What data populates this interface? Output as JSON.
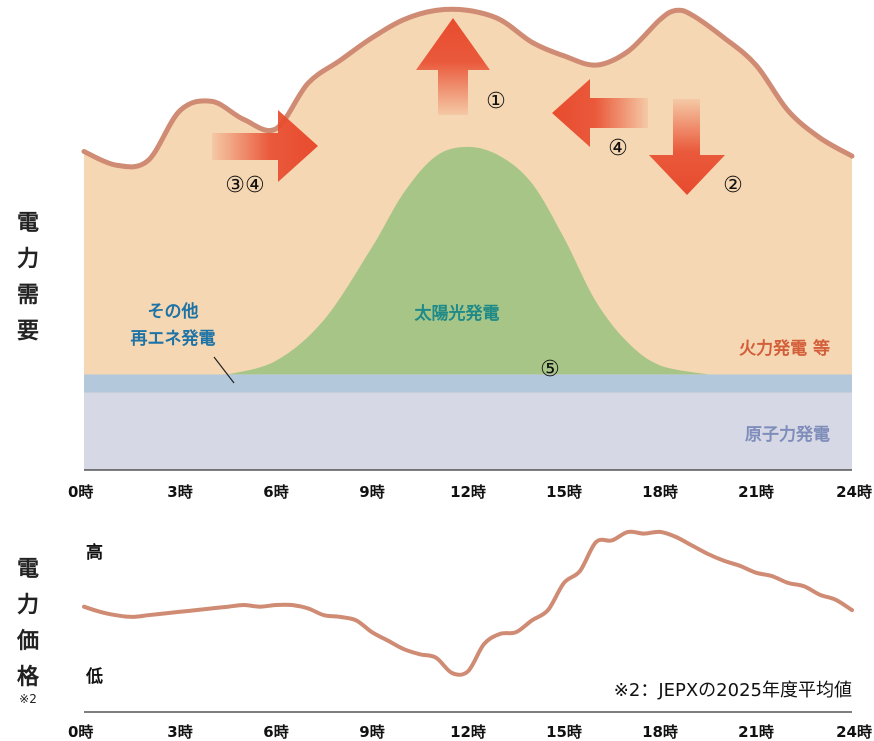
{
  "colors": {
    "thermal_fill": "#f6d7b3",
    "demand_line": "#cf8b73",
    "solar_fill": "#a8c588",
    "other_renew_fill": "#b4c8db",
    "nuclear_fill": "#d6d8e5",
    "arrow_red": "#e84b2e",
    "solar_label": "#1f8a87",
    "other_label": "#1e73a6",
    "thermal_label": "#d35e3a",
    "nuclear_label": "#7f8dbb",
    "price_line": "#cf8b73"
  },
  "chart_data": [
    {
      "type": "area",
      "ylabel": "電力需要",
      "x_ticks": [
        "0時",
        "3時",
        "6時",
        "9時",
        "12時",
        "15時",
        "18時",
        "21時",
        "24時"
      ],
      "xlim": [
        0,
        24
      ],
      "ylim": [
        0,
        100
      ],
      "series": [
        {
          "name": "原子力発電",
          "x": [
            0,
            24
          ],
          "values": [
            17,
            17
          ]
        },
        {
          "name": "その他再エネ発電",
          "x": [
            0,
            24
          ],
          "values": [
            4,
            4
          ]
        },
        {
          "name": "太陽光発電",
          "x": [
            4.5,
            6,
            7.5,
            9,
            10,
            11,
            12,
            13,
            14,
            15,
            16,
            17,
            18,
            19.5
          ],
          "values": [
            0,
            3,
            12,
            28,
            40,
            48,
            50,
            48,
            42,
            30,
            16,
            7,
            2,
            0
          ]
        },
        {
          "name": "火力発電 等",
          "x": [
            0,
            1,
            2,
            3,
            4,
            5,
            6,
            7,
            8,
            9,
            10,
            11,
            12,
            13,
            14,
            15,
            16,
            17,
            18,
            18.5,
            19,
            20,
            21,
            22,
            23,
            24
          ],
          "values": [
            70,
            67,
            68,
            79,
            81,
            77,
            75,
            85,
            90,
            95,
            99,
            101,
            101,
            99,
            94,
            91,
            89,
            92,
            99,
            101,
            100,
            95,
            89,
            79,
            73,
            69
          ]
        }
      ],
      "annotations": {
        "circled": [
          "①",
          "②",
          "③④",
          "④",
          "⑤"
        ]
      }
    },
    {
      "type": "line",
      "ylabel": "電力価格",
      "ylabel_note": "※2",
      "y_high": "高",
      "y_low": "低",
      "note": "※2：JEPXの2025年度平均値",
      "x_ticks": [
        "0時",
        "3時",
        "6時",
        "9時",
        "12時",
        "15時",
        "18時",
        "21時",
        "24時"
      ],
      "xlim": [
        0,
        24
      ],
      "ylim": [
        0,
        100
      ],
      "series": [
        {
          "x": [
            0,
            0.5,
            1,
            1.5,
            2,
            2.5,
            3,
            3.5,
            4,
            4.5,
            5,
            5.5,
            6,
            6.5,
            7,
            7.5,
            8,
            8.5,
            9,
            9.5,
            10,
            10.5,
            11,
            11.5,
            12,
            12.5,
            13,
            13.5,
            14,
            14.5,
            15,
            15.5,
            16,
            16.5,
            17,
            17.5,
            18,
            18.5,
            19,
            19.5,
            20,
            20.5,
            21,
            21.5,
            22,
            22.5,
            23,
            23.5,
            24
          ],
          "values": [
            49,
            46,
            44,
            43,
            44,
            45,
            46,
            47,
            48,
            49,
            50,
            49,
            50,
            50,
            48,
            44,
            43,
            41,
            34,
            29,
            24,
            21,
            19,
            10,
            11,
            27,
            33,
            34,
            41,
            47,
            63,
            70,
            87,
            88,
            93,
            92,
            93,
            90,
            85,
            80,
            76,
            73,
            69,
            67,
            63,
            61,
            56,
            53,
            47
          ]
        }
      ]
    }
  ]
}
